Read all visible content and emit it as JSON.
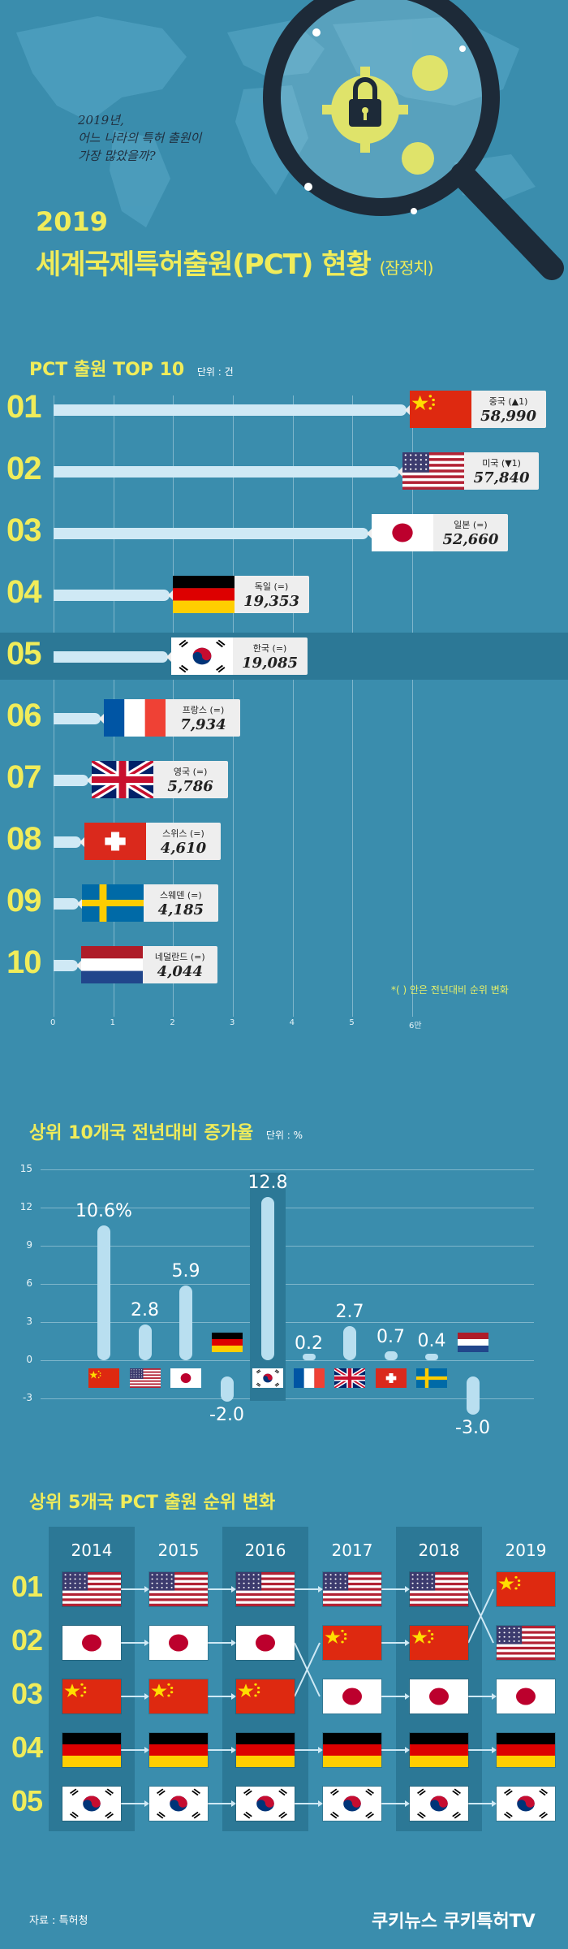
{
  "header": {
    "question": "2019년,\n어느 나라의 특허 출원이\n가장 많았을까?",
    "year": "2019",
    "title_main": "세계국제특허출원(PCT) 현황",
    "title_sub": "(잠정치)"
  },
  "section1": {
    "title": "PCT 출원 TOP 10",
    "unit": "단위 : 건",
    "footnote": "*(  ) 안은 전년대비 순위 변화",
    "axis_ticks": [
      "0",
      "1",
      "2",
      "3",
      "4",
      "5",
      "6만"
    ]
  },
  "section2": {
    "title": "상위 10개국 전년대비 증가율",
    "unit": "단위 : %",
    "ticks": [
      "15",
      "12",
      "9",
      "6",
      "3",
      "0",
      "-3"
    ]
  },
  "section3": {
    "title": "상위 5개국 PCT 출원 순위 변화",
    "years": [
      "2014",
      "2015",
      "2016",
      "2017",
      "2018",
      "2019"
    ],
    "ranks": [
      "01",
      "02",
      "03",
      "04",
      "05"
    ]
  },
  "footer": {
    "source": "자료 : 특허청",
    "brand": "쿠키뉴스 쿠키특허TV"
  },
  "chart_data": [
    {
      "type": "bar",
      "title": "PCT 출원 TOP 10",
      "unit": "단위 : 건",
      "categories": [
        "중국 (▲1)",
        "미국 (▼1)",
        "일본 (=)",
        "독일 (=)",
        "한국 (=)",
        "프랑스 (=)",
        "영국 (=)",
        "스위스 (=)",
        "스웨덴 (=)",
        "네덜란드 (=)"
      ],
      "values": [
        58990,
        57840,
        52660,
        19353,
        19085,
        7934,
        5786,
        4610,
        4185,
        4044
      ],
      "value_labels": [
        "58,990",
        "57,840",
        "52,660",
        "19,353",
        "19,085",
        "7,934",
        "5,786",
        "4,610",
        "4,185",
        "4,044"
      ],
      "ranks": [
        "01",
        "02",
        "03",
        "04",
        "05",
        "06",
        "07",
        "08",
        "09",
        "10"
      ],
      "flags": [
        "cn",
        "us",
        "jp",
        "de",
        "kr",
        "fr",
        "gb",
        "ch",
        "se",
        "nl"
      ],
      "xlim": [
        0,
        60000
      ],
      "highlight": "한국 (=)"
    },
    {
      "type": "bar",
      "title": "상위 10개국 전년대비 증가율",
      "unit": "단위 : %",
      "categories": [
        "cn",
        "us",
        "jp",
        "de",
        "kr",
        "fr",
        "gb",
        "ch",
        "se",
        "nl"
      ],
      "values": [
        10.6,
        2.8,
        5.9,
        -2.0,
        12.8,
        0.2,
        2.7,
        0.7,
        0.4,
        -3.0
      ],
      "value_labels": [
        "10.6%",
        "2.8",
        "5.9",
        "-2.0",
        "12.8",
        "0.2",
        "2.7",
        "0.7",
        "0.4",
        "-3.0"
      ],
      "ylim": [
        -3,
        15
      ],
      "highlight": "kr"
    },
    {
      "type": "table",
      "title": "상위 5개국 PCT 출원 순위 변화",
      "years": [
        "2014",
        "2015",
        "2016",
        "2017",
        "2018",
        "2019"
      ],
      "rankings": [
        [
          "us",
          "jp",
          "cn",
          "de",
          "kr"
        ],
        [
          "us",
          "jp",
          "cn",
          "de",
          "kr"
        ],
        [
          "us",
          "jp",
          "cn",
          "de",
          "kr"
        ],
        [
          "us",
          "cn",
          "jp",
          "de",
          "kr"
        ],
        [
          "us",
          "cn",
          "jp",
          "de",
          "kr"
        ],
        [
          "cn",
          "us",
          "jp",
          "de",
          "kr"
        ]
      ]
    }
  ]
}
